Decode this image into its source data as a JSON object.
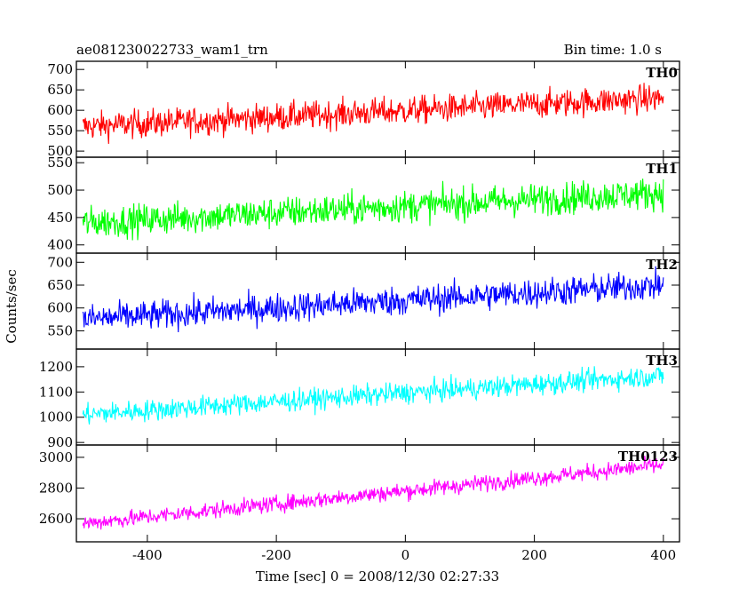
{
  "title": "ae081230022733_wam1_trn",
  "bin_time": "Bin time: 1.0 s",
  "ylabel": "Counts/sec",
  "xlabel": "Time [sec] 0 = 2008/12/30 02:27:33",
  "chart_data": {
    "type": "line",
    "x_ticks": [
      -400,
      -200,
      0,
      200,
      400
    ],
    "xlim": [
      -510,
      425
    ],
    "panels": [
      {
        "name": "TH0",
        "color": "#ff0000",
        "ylim": [
          485,
          720
        ],
        "y_ticks": [
          500,
          550,
          600,
          650,
          700
        ],
        "trend": {
          "x": [
            -500,
            400
          ],
          "y": [
            560,
            630
          ]
        },
        "noise_amplitude": 45
      },
      {
        "name": "TH1",
        "color": "#00ff00",
        "ylim": [
          385,
          560
        ],
        "y_ticks": [
          400,
          450,
          500,
          550
        ],
        "trend": {
          "x": [
            -500,
            400
          ],
          "y": [
            440,
            495
          ]
        },
        "noise_amplitude": 38
      },
      {
        "name": "TH2",
        "color": "#0000ff",
        "ylim": [
          510,
          720
        ],
        "y_ticks": [
          550,
          600,
          650,
          700
        ],
        "trend": {
          "x": [
            -500,
            400
          ],
          "y": [
            575,
            650
          ]
        },
        "noise_amplitude": 42
      },
      {
        "name": "TH3",
        "color": "#00ffff",
        "ylim": [
          890,
          1270
        ],
        "y_ticks": [
          900,
          1000,
          1100,
          1200
        ],
        "trend": {
          "x": [
            -500,
            400
          ],
          "y": [
            1010,
            1165
          ]
        },
        "noise_amplitude": 55
      },
      {
        "name": "TH0123",
        "color": "#ff00ff",
        "ylim": [
          2450,
          3080
        ],
        "y_ticks": [
          2600,
          2800,
          3000
        ],
        "trend": {
          "x": [
            -500,
            400
          ],
          "y": [
            2570,
            2950
          ]
        },
        "noise_amplitude": 70
      }
    ]
  }
}
